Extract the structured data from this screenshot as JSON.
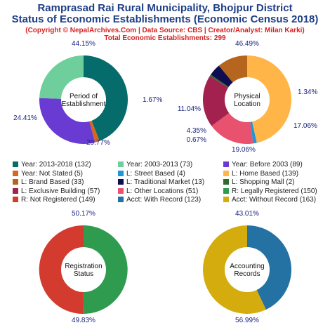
{
  "header": {
    "title_line1": "Ramprasad Rai Rural Municipality, Bhojpur District",
    "title_line2": "Status of Economic Establishments (Economic Census 2018)",
    "copyright": "(Copyright © NepalArchives.Com | Data Source: CBS | Creator/Analyst: Milan Karki)",
    "total": "Total Economic Establishments: 299"
  },
  "chart_data": [
    {
      "type": "pie",
      "center_label": [
        "Period of",
        "Establishment"
      ],
      "slices": [
        {
          "label": "Year: 2013-2018",
          "value": 132,
          "pct": "44.15%",
          "color": "#066b6b"
        },
        {
          "label": "Year: Not Stated",
          "value": 5,
          "pct": "1.67%",
          "color": "#d2691e"
        },
        {
          "label": "Year: Before 2003",
          "value": 89,
          "pct": "29.77%",
          "color": "#6a3bd3"
        },
        {
          "label": "Year: 2003-2013",
          "value": 73,
          "pct": "24.41%",
          "color": "#6ecf9d"
        }
      ]
    },
    {
      "type": "pie",
      "center_label": [
        "Physical",
        "Location"
      ],
      "slices": [
        {
          "label": "L: Home Based",
          "value": 139,
          "pct": "46.49%",
          "color": "#ffb547"
        },
        {
          "label": "L: Street Based",
          "value": 4,
          "pct": "1.34%",
          "color": "#1d97d5"
        },
        {
          "label": "L: Other Locations",
          "value": 51,
          "pct": "17.06%",
          "color": "#e8526e"
        },
        {
          "label": "L: Exclusive Building",
          "value": 57,
          "pct": "19.06%",
          "color": "#a2214f"
        },
        {
          "label": "L: Shopping Mall",
          "value": 2,
          "pct": "0.67%",
          "color": "#2f6b2f"
        },
        {
          "label": "L: Traditional Market",
          "value": 13,
          "pct": "4.35%",
          "color": "#0d0d4f"
        },
        {
          "label": "L: Brand Based",
          "value": 33,
          "pct": "11.04%",
          "color": "#b5651d"
        }
      ]
    },
    {
      "type": "pie",
      "center_label": [
        "Registration",
        "Status"
      ],
      "slices": [
        {
          "label": "R: Legally Registered",
          "value": 150,
          "pct": "50.17%",
          "color": "#2e9b4f"
        },
        {
          "label": "R: Not Registered",
          "value": 149,
          "pct": "49.83%",
          "color": "#d23b2e"
        }
      ]
    },
    {
      "type": "pie",
      "center_label": [
        "Accounting",
        "Records"
      ],
      "slices": [
        {
          "label": "Acct: With Record",
          "value": 123,
          "pct": "43.01%",
          "color": "#2471a3"
        },
        {
          "label": "Acct: Without Record",
          "value": 163,
          "pct": "56.99%",
          "color": "#d4ac0d"
        }
      ]
    }
  ],
  "legend": [
    {
      "text": "Year: 2013-2018 (132)",
      "color": "#066b6b"
    },
    {
      "text": "Year: 2003-2013 (73)",
      "color": "#6ecf9d"
    },
    {
      "text": "Year: Before 2003 (89)",
      "color": "#6a3bd3"
    },
    {
      "text": "Year: Not Stated (5)",
      "color": "#d2691e"
    },
    {
      "text": "L: Street Based (4)",
      "color": "#1d97d5"
    },
    {
      "text": "L: Home Based (139)",
      "color": "#ffb547"
    },
    {
      "text": "L: Brand Based (33)",
      "color": "#b5651d"
    },
    {
      "text": "L: Traditional Market (13)",
      "color": "#0d0d4f"
    },
    {
      "text": "L: Shopping Mall (2)",
      "color": "#2f6b2f"
    },
    {
      "text": "L: Exclusive Building (57)",
      "color": "#a2214f"
    },
    {
      "text": "L: Other Locations (51)",
      "color": "#e8526e"
    },
    {
      "text": "R: Legally Registered (150)",
      "color": "#2e9b4f"
    },
    {
      "text": "R: Not Registered (149)",
      "color": "#d23b2e"
    },
    {
      "text": "Acct: With Record (123)",
      "color": "#2471a3"
    },
    {
      "text": "Acct: Without Record (163)",
      "color": "#d4ac0d"
    }
  ]
}
